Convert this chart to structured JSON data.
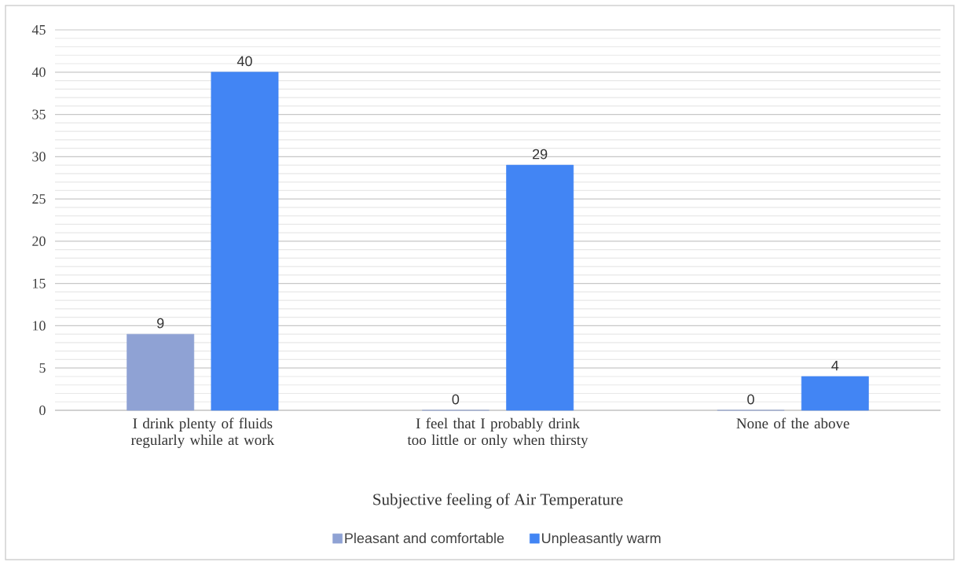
{
  "chart_data": {
    "type": "bar",
    "xlabel": "Subjective feeling of Air Temperature",
    "categories": [
      "I drink plenty of fluids regularly while at work",
      "I feel that I probably drink too little or only when thirsty",
      "None of the above"
    ],
    "series": [
      {
        "name": "Pleasant and comfortable",
        "color": "#8fa2d4",
        "values": [
          9,
          0,
          0
        ]
      },
      {
        "name": "Unpleasantly warm",
        "color": "#4285f4",
        "values": [
          40,
          29,
          4
        ]
      }
    ],
    "ylim": [
      0,
      45
    ],
    "yticks": [
      0,
      5,
      10,
      15,
      20,
      25,
      30,
      35,
      40,
      45
    ],
    "grid": "y",
    "legend": "bottom",
    "data_labels": true
  }
}
